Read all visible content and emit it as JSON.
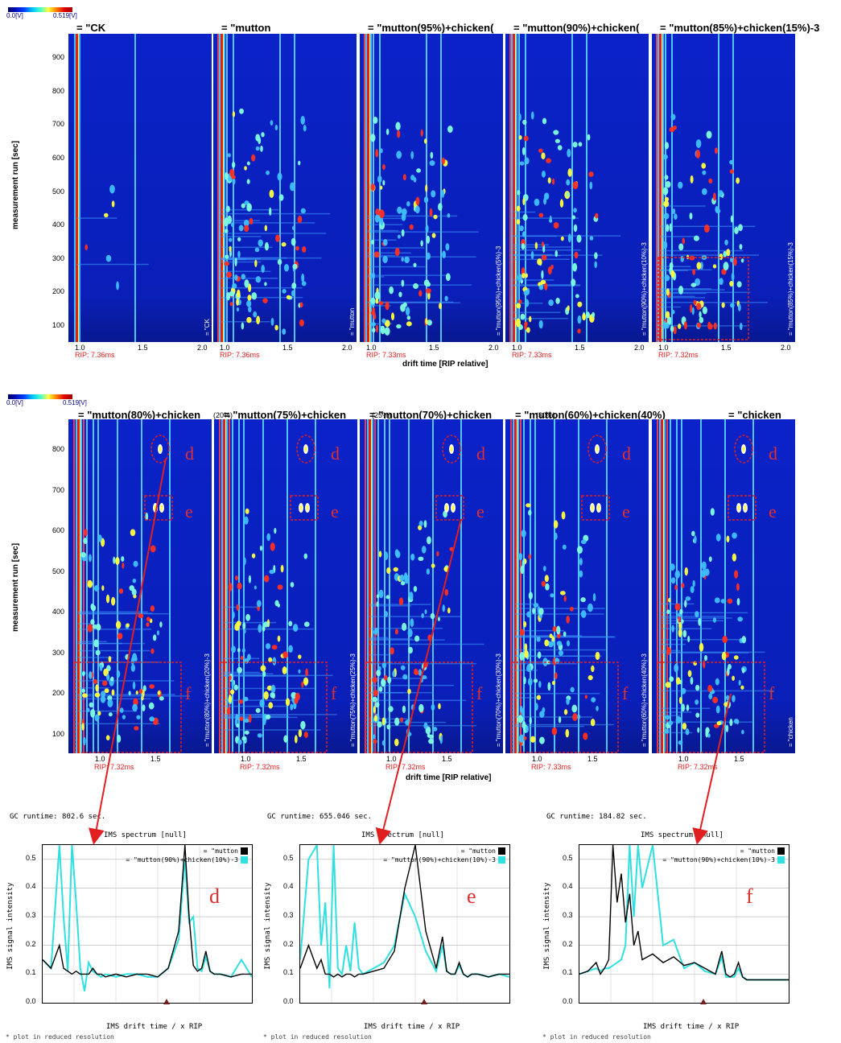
{
  "colorbar": {
    "min": "0.0[V]",
    "max": "0.519[V]"
  },
  "row1": {
    "titles": [
      "= \"CK",
      "= \"mutton",
      "= \"mutton(95%)+chicken(",
      "= \"mutton(90%)+chicken(",
      "= \"mutton(85%)+chicken(15%)-3"
    ],
    "side_labels": [
      "= \"CK",
      "= \"mutton",
      "= \"mutton(95%)+chicken(5%)-3",
      "= \"mutton(90%)+chicken(10%)-3",
      "= \"mutton(85%)+chicken(15%)-3"
    ],
    "rip": [
      "RIP: 7.36ms",
      "RIP: 7.36ms",
      "RIP: 7.33ms",
      "RIP: 7.33ms",
      "RIP: 7.32ms"
    ],
    "yticks": [
      "900",
      "800",
      "700",
      "600",
      "500",
      "400",
      "300",
      "200",
      "100"
    ],
    "xticks": [
      "1.0",
      "1.5",
      "2.0"
    ],
    "ylabel": "measurement run [sec]",
    "xlabel": "drift time [RIP relative]"
  },
  "row2": {
    "titles": [
      "= \"mutton(80%)+chicken",
      "= \"mutton(75%)+chicken",
      "= \"mutton(70%)+chicken",
      "= \"mutton(60%)+chicken(40%)",
      "= \"chicken"
    ],
    "title_suffix": [
      "(20%)",
      "(25%)",
      "(30%)"
    ],
    "side_labels": [
      "= \"mutton(80%)+chicken(20%)-3",
      "= \"mutton(75%)+chicken(25%)-3",
      "= \"mutton(70%)+chicken(30%)-3",
      "= \"mutton(60%)+chicken(40%)-3",
      "= \"chicken"
    ],
    "rip": [
      "RIP: 7.32ms",
      "RIP: 7.32ms",
      "RIP: 7.32ms",
      "RIP: 7.33ms",
      "RIP: 7.32ms"
    ],
    "yticks": [
      "800",
      "700",
      "600",
      "500",
      "400",
      "300",
      "200",
      "100"
    ],
    "xticks": [
      "1.0",
      "1.5"
    ],
    "ylabel": "measurement run [sec]",
    "xlabel": "drift time [RIP relative]",
    "region_marks": [
      "d",
      "e",
      "f"
    ]
  },
  "spectra": [
    {
      "runtime": "GC runtime: 802.6 sec.",
      "header": "IMS spectrum [null]",
      "mark": "d"
    },
    {
      "runtime": "GC runtime: 655.046 sec.",
      "header": "IMS spectrum [null]",
      "mark": "e"
    },
    {
      "runtime": "GC runtime: 184.82 sec.",
      "header": "IMS spectrum [null]",
      "mark": "f"
    }
  ],
  "spectrum_axes": {
    "ylabel": "IMS signal intensity",
    "xlabel": "IMS drift time / x RIP",
    "yticks": [
      "0.5",
      "0.4",
      "0.3",
      "0.2",
      "0.1",
      "0.0"
    ],
    "footnote": "* plot in reduced resolution"
  },
  "legend": [
    {
      "label": "= \"mutton",
      "color": "#000000"
    },
    {
      "label": "= \"mutton(90%)+chicken(10%)-3",
      "color": "#30e0e0"
    }
  ],
  "chart_data": [
    {
      "type": "heatmap",
      "title": "",
      "xlabel": "drift time [RIP relative]",
      "ylabel": "measurement run [sec]",
      "xlim": [
        0.95,
        2.05
      ],
      "ylim": [
        60,
        990
      ],
      "panels": [
        "= \"CK",
        "= \"mutton",
        "= \"mutton(95%)+chicken(5%)-3",
        "= \"mutton(90%)+chicken(10%)-3",
        "= \"mutton(85%)+chicken(15%)-3"
      ]
    },
    {
      "type": "heatmap",
      "title": "",
      "xlabel": "drift time [RIP relative]",
      "ylabel": "measurement run [sec]",
      "xlim": [
        0.95,
        1.7
      ],
      "ylim": [
        60,
        860
      ],
      "panels": [
        "= \"mutton(80%)+chicken(20%)-3",
        "= \"mutton(75%)+chicken(25%)-3",
        "= \"mutton(70%)+chicken(30%)-3",
        "= \"mutton(60%)+chicken(40%)-3",
        "= \"chicken"
      ]
    },
    {
      "type": "line",
      "title": "IMS spectrum [null]",
      "xlabel": "IMS drift time / x RIP",
      "ylabel": "IMS signal intensity",
      "ylim": [
        0,
        0.55
      ],
      "x": [
        0,
        4,
        8,
        10,
        12,
        14,
        16,
        18,
        20,
        22,
        24,
        26,
        28,
        30,
        35,
        40,
        45,
        50,
        55,
        60,
        65,
        68,
        70,
        72,
        74,
        76,
        78,
        80,
        82,
        85,
        90,
        95,
        100
      ],
      "series": [
        {
          "name": "= \"mutton",
          "values": [
            0.15,
            0.12,
            0.2,
            0.12,
            0.11,
            0.1,
            0.11,
            0.1,
            0.1,
            0.1,
            0.12,
            0.1,
            0.1,
            0.09,
            0.1,
            0.09,
            0.1,
            0.1,
            0.09,
            0.12,
            0.25,
            0.55,
            0.3,
            0.13,
            0.11,
            0.12,
            0.18,
            0.11,
            0.1,
            0.1,
            0.09,
            0.1,
            0.1
          ]
        },
        {
          "name": "= \"mutton(90%)+chicken(10%)-3",
          "values": [
            0.15,
            0.12,
            0.55,
            0.3,
            0.11,
            0.55,
            0.35,
            0.12,
            0.04,
            0.14,
            0.11,
            0.1,
            0.09,
            0.1,
            0.09,
            0.1,
            0.1,
            0.09,
            0.09,
            0.12,
            0.22,
            0.5,
            0.28,
            0.3,
            0.12,
            0.11,
            0.16,
            0.11,
            0.1,
            0.1,
            0.09,
            0.15,
            0.09
          ]
        }
      ]
    },
    {
      "type": "line",
      "title": "IMS spectrum [null]",
      "xlabel": "IMS drift time / x RIP",
      "ylabel": "IMS signal intensity",
      "ylim": [
        0,
        0.55
      ],
      "x": [
        0,
        4,
        8,
        10,
        12,
        14,
        16,
        18,
        20,
        22,
        24,
        26,
        28,
        30,
        35,
        40,
        45,
        50,
        55,
        60,
        65,
        68,
        70,
        72,
        74,
        76,
        78,
        80,
        82,
        85,
        90,
        95,
        100
      ],
      "series": [
        {
          "name": "= \"mutton",
          "values": [
            0.12,
            0.2,
            0.12,
            0.15,
            0.1,
            0.1,
            0.09,
            0.1,
            0.09,
            0.1,
            0.1,
            0.09,
            0.1,
            0.1,
            0.11,
            0.12,
            0.18,
            0.4,
            0.55,
            0.25,
            0.12,
            0.23,
            0.11,
            0.1,
            0.1,
            0.14,
            0.1,
            0.09,
            0.1,
            0.1,
            0.09,
            0.1,
            0.1
          ]
        },
        {
          "name": "= \"mutton(90%)+chicken(10%)-3",
          "values": [
            0.15,
            0.5,
            0.55,
            0.2,
            0.35,
            0.05,
            0.55,
            0.12,
            0.1,
            0.2,
            0.11,
            0.28,
            0.12,
            0.1,
            0.12,
            0.14,
            0.2,
            0.38,
            0.3,
            0.18,
            0.11,
            0.2,
            0.11,
            0.1,
            0.1,
            0.13,
            0.1,
            0.09,
            0.1,
            0.1,
            0.09,
            0.1,
            0.09
          ]
        }
      ]
    },
    {
      "type": "line",
      "title": "IMS spectrum [null]",
      "xlabel": "IMS drift time / x RIP",
      "ylabel": "IMS signal intensity",
      "ylim": [
        0,
        0.55
      ],
      "x": [
        0,
        4,
        8,
        10,
        12,
        14,
        16,
        18,
        20,
        22,
        24,
        26,
        28,
        30,
        35,
        40,
        45,
        50,
        55,
        60,
        65,
        68,
        70,
        72,
        74,
        76,
        78,
        80,
        82,
        85,
        90,
        95,
        100
      ],
      "series": [
        {
          "name": "= \"mutton",
          "values": [
            0.1,
            0.11,
            0.14,
            0.1,
            0.12,
            0.15,
            0.55,
            0.35,
            0.45,
            0.28,
            0.38,
            0.2,
            0.25,
            0.15,
            0.17,
            0.14,
            0.16,
            0.13,
            0.14,
            0.12,
            0.1,
            0.18,
            0.1,
            0.09,
            0.1,
            0.14,
            0.09,
            0.08,
            0.08,
            0.08,
            0.08,
            0.08,
            0.08
          ]
        },
        {
          "name": "= \"mutton(90%)+chicken(10%)-3",
          "values": [
            0.1,
            0.11,
            0.12,
            0.11,
            0.12,
            0.12,
            0.13,
            0.14,
            0.15,
            0.2,
            0.55,
            0.3,
            0.55,
            0.4,
            0.55,
            0.2,
            0.22,
            0.12,
            0.14,
            0.11,
            0.1,
            0.16,
            0.09,
            0.09,
            0.09,
            0.12,
            0.09,
            0.08,
            0.08,
            0.08,
            0.08,
            0.08,
            0.08
          ]
        }
      ]
    }
  ]
}
